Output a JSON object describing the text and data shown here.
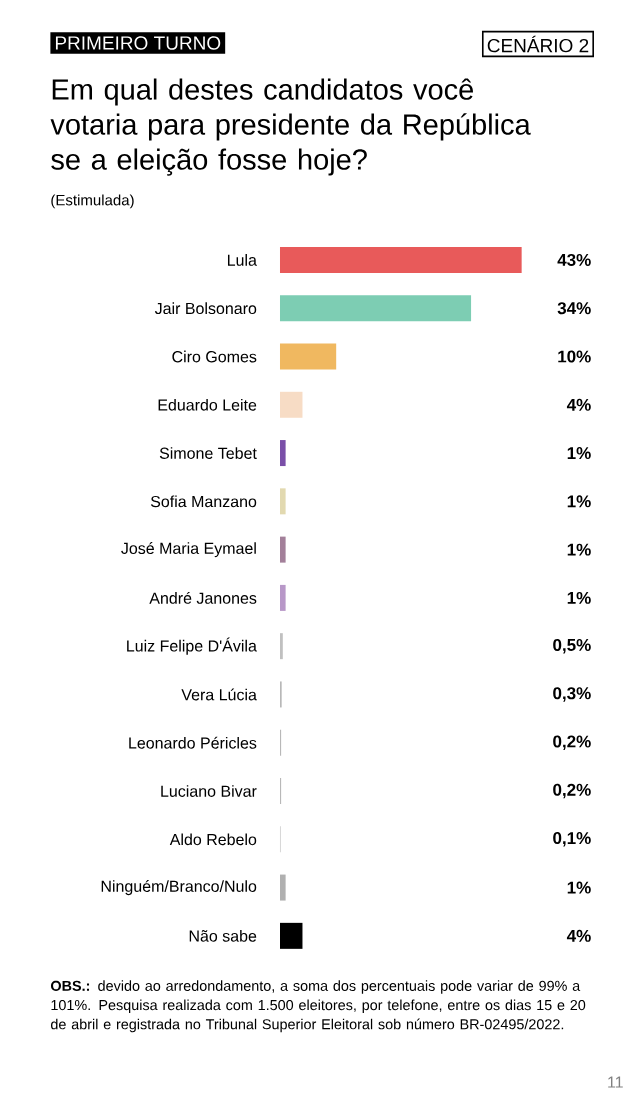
{
  "chart_data": {
    "type": "bar",
    "orientation": "horizontal",
    "title": "Em qual destes candidatos você votaria para presidente da República se a eleição fosse hoje?",
    "subtitle": "(Estimulada)",
    "categories": [
      "Lula",
      "Jair Bolsonaro",
      "Ciro Gomes",
      "Eduardo Leite",
      "Simone Tebet",
      "Sofia Manzano",
      "José Maria Eymael",
      "André Janones",
      "Luiz Felipe D'Ávila",
      "Vera Lúcia",
      "Leonardo Péricles",
      "Luciano Bivar",
      "Aldo Rebelo",
      "Ninguém/Branco/Nulo",
      "Não sabe"
    ],
    "values": [
      43,
      34,
      10,
      4,
      1,
      1,
      1,
      1,
      0.5,
      0.3,
      0.2,
      0.2,
      0.1,
      1,
      4
    ],
    "colors": [
      "#e85a5a",
      "#7dcdb3",
      "#f0b860",
      "#f7dcc5",
      "#7a4fa8",
      "#e2d9b0",
      "#a3809a",
      "#b898c8",
      "#c0c0c0",
      "#b8b8b8",
      "#b8b8b8",
      "#b8b8b8",
      "#b8b8b8",
      "#b0b0b0",
      "#000000"
    ],
    "value_labels": [
      "43%",
      "34%",
      "10%",
      "4%",
      "1%",
      "1%",
      "1%",
      "1%",
      "0,5%",
      "0,3%",
      "0,2%",
      "0,2%",
      "0,1%",
      "1%",
      "4%"
    ],
    "annotations": [
      "PRIMEIRO TURNO",
      "CENÁRIO 2",
      "**OBS.:** devido ao arredondamento, a soma dos percentuais pode variar de 99% a 101%. Pesquisa realizada com 1.500 eleitores, por telefone, entre os dias 15 e 20 de abril e registrada no Tribunal Superior Eleitoral sob número BR-02495/2022.",
      "11"
    ]
  }
}
